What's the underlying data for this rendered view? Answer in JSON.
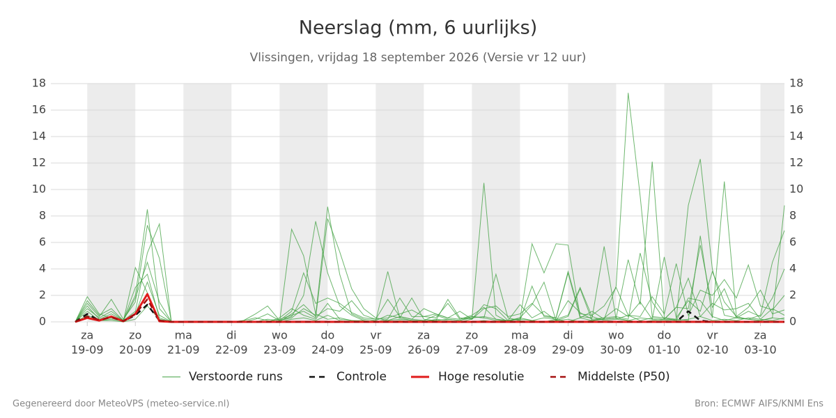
{
  "chart_data": {
    "type": "ensemble-line",
    "title": "Neerslag (mm, 6 uurlijks)",
    "subtitle": "Vlissingen, vrijdag 18 september 2026 (Versie vr 12 uur)",
    "footer_left": "Gegenereerd door MeteoVPS (meteo-service.nl)",
    "footer_right": "Bron: ECMWF AIFS/KNMI Ens",
    "categories": [
      null,
      "19-09",
      null,
      null,
      null,
      "20-09",
      null,
      null,
      null,
      "21-09",
      null,
      null,
      null,
      "22-09",
      null,
      null,
      null,
      "23-09",
      null,
      null,
      null,
      "24-09",
      null,
      null,
      null,
      "25-09",
      null,
      null,
      null,
      "26-09",
      null,
      null,
      null,
      "27-09",
      null,
      null,
      null,
      "28-09",
      null,
      null,
      null,
      "29-09",
      null,
      null,
      null,
      "30-09",
      null,
      null,
      null,
      "01-10",
      null,
      null,
      null,
      "02-10",
      null,
      null,
      null,
      "03-10",
      null,
      null
    ],
    "weekdays": [
      null,
      "za",
      null,
      null,
      null,
      "zo",
      null,
      null,
      null,
      "ma",
      null,
      null,
      null,
      "di",
      null,
      null,
      null,
      "wo",
      null,
      null,
      null,
      "do",
      null,
      null,
      null,
      "vr",
      null,
      null,
      null,
      "za",
      null,
      null,
      null,
      "zo",
      null,
      null,
      null,
      "ma",
      null,
      null,
      null,
      "di",
      null,
      null,
      null,
      "wo",
      null,
      null,
      null,
      "do",
      null,
      null,
      null,
      "vr",
      null,
      null,
      null,
      "za",
      null,
      null
    ],
    "ylim": [
      0,
      18
    ],
    "yticks": [
      0,
      2,
      4,
      6,
      8,
      10,
      12,
      14,
      16,
      18
    ],
    "grid": true,
    "ensemble": {
      "name": "Verstoorde runs",
      "color": "#3d9f3d",
      "members": [
        [
          0,
          1.9,
          0.6,
          0.3,
          0.1,
          2.0,
          8.5,
          1.0,
          0,
          0,
          0,
          0,
          0,
          0,
          0.1,
          0.3,
          0.1,
          0,
          7.0,
          5.0,
          0.6,
          0.2,
          0.3,
          0.1,
          0,
          0.1,
          3.8,
          0.3,
          0.1,
          0,
          0.2,
          0.1,
          0,
          0.2,
          10.5,
          0.5,
          0,
          0.3,
          0.1,
          0,
          0.2,
          0,
          0.3,
          0.1,
          0.2,
          2.7,
          17.3,
          9.5,
          0.4,
          0.3,
          0.1,
          1.8,
          1.6,
          0.4,
          0.1,
          0.3,
          0.2,
          0.1,
          0.3,
          0.2
        ],
        [
          0,
          1.4,
          0.4,
          1.7,
          0.2,
          1.5,
          7.3,
          4.8,
          0,
          0,
          0,
          0,
          0,
          0,
          0,
          0.2,
          0.6,
          0.1,
          0.4,
          2.0,
          7.6,
          3.7,
          1.2,
          0.5,
          0.1,
          0,
          0.2,
          1.8,
          0.4,
          0.4,
          0.3,
          1.4,
          0.2,
          0.4,
          0.3,
          3.6,
          0.3,
          0.1,
          2.7,
          0.4,
          0.3,
          3.7,
          0.3,
          0.8,
          0.2,
          0.3,
          4.7,
          1.3,
          12.1,
          0.3,
          0.2,
          8.8,
          12.3,
          4.0,
          0.5,
          0.3,
          0.2,
          0.5,
          4.5,
          6.9
        ],
        [
          0,
          1.0,
          0.3,
          0.8,
          0.1,
          0.8,
          5.2,
          7.4,
          0,
          0,
          0,
          0,
          0,
          0,
          0.1,
          0.6,
          1.2,
          0.1,
          0.3,
          1.0,
          0.5,
          8.7,
          3.6,
          0.6,
          0.2,
          0.1,
          0.5,
          0.3,
          1.8,
          0.2,
          0.1,
          1.7,
          0.3,
          0.2,
          1.3,
          1.0,
          0.1,
          0.3,
          1.3,
          3.0,
          0.1,
          0.4,
          2.5,
          0.1,
          0.3,
          1.0,
          0.4,
          1.5,
          0.2,
          4.9,
          0.3,
          1.6,
          0.8,
          3.8,
          1.5,
          0.4,
          1.1,
          2.4,
          0.6,
          0.9
        ],
        [
          0,
          0.5,
          0.1,
          0.3,
          0.05,
          0.6,
          3.0,
          0.5,
          0,
          0,
          0,
          0,
          0,
          0,
          0,
          0,
          0,
          0.2,
          0.5,
          0.8,
          0.3,
          7.8,
          5.3,
          2.5,
          1.0,
          0.3,
          0.1,
          0.4,
          0.2,
          0.1,
          0.5,
          0.2,
          0.1,
          0.3,
          0.4,
          0.2,
          0.1,
          0.2,
          5.9,
          3.7,
          5.9,
          5.8,
          0.4,
          0.3,
          5.7,
          0.2,
          0.1,
          0.3,
          0.2,
          0.1,
          0.2,
          0.1,
          6.5,
          0.3,
          10.6,
          0.4,
          0.2,
          0.1,
          0.3,
          8.8
        ],
        [
          0,
          1.6,
          0.5,
          1.0,
          0.1,
          1.8,
          4.5,
          1.5,
          0,
          0,
          0,
          0,
          0,
          0,
          0,
          0,
          0,
          0,
          0.6,
          1.3,
          0.4,
          1.0,
          0.8,
          1.6,
          0.5,
          0.2,
          1.7,
          0.4,
          0.2,
          1.0,
          0.6,
          0.3,
          0.8,
          0.2,
          1.0,
          1.2,
          0.4,
          0.6,
          1.4,
          0.5,
          0.3,
          3.8,
          0.6,
          0.5,
          1.2,
          2.6,
          0.5,
          0.4,
          1.9,
          0.6,
          4.4,
          0.5,
          2.4,
          2.0,
          3.2,
          1.8,
          4.3,
          1.2,
          0.9,
          2.0
        ],
        [
          0,
          1.2,
          0.2,
          0.6,
          0.1,
          2.6,
          3.6,
          0.3,
          0,
          0,
          0,
          0,
          0,
          0,
          0,
          0,
          0.2,
          0.1,
          0.8,
          3.7,
          1.4,
          1.8,
          1.4,
          0.7,
          0.3,
          0.2,
          0.3,
          0.6,
          0.9,
          0.4,
          0.6,
          0.3,
          0.2,
          0.5,
          1.1,
          0.2,
          0.1,
          1.3,
          0.3,
          0.8,
          0.1,
          1.6,
          0.7,
          0.2,
          0.3,
          0.4,
          0.2,
          5.2,
          1.5,
          0.2,
          1.1,
          1.0,
          5.8,
          1.1,
          2.5,
          0.3,
          0.8,
          0.4,
          1.8,
          4.0
        ],
        [
          0,
          0.8,
          0.1,
          0.2,
          0.05,
          4.1,
          2.2,
          0.1,
          0,
          0,
          0,
          0,
          0,
          0,
          0,
          0,
          0,
          0.3,
          1.0,
          0.5,
          0.2,
          1.4,
          0.2,
          0.1,
          0.1,
          0,
          0.1,
          0.2,
          0.1,
          0.1,
          0.1,
          0.2,
          0.1,
          0.4,
          0.3,
          0.1,
          0.1,
          0.2,
          0.1,
          0.3,
          0.2,
          0.5,
          2.6,
          0.4,
          0.1,
          0.2,
          0.5,
          0.1,
          0.3,
          0.2,
          1.1,
          3.3,
          0.4,
          1.4,
          0.9,
          1.0,
          1.4,
          0.2,
          1.0,
          0.5
        ],
        [
          0,
          0.3,
          0.1,
          0.1,
          0,
          0.2,
          1.2,
          0.2,
          0,
          0,
          0,
          0,
          0,
          0,
          0,
          0,
          0,
          0,
          0.2,
          0.3,
          0.1,
          0.5,
          0.1,
          0,
          0,
          0,
          0,
          0.1,
          0,
          0,
          0.1,
          0,
          0,
          0,
          0.1,
          0,
          0,
          0.1,
          0,
          0,
          0.1,
          0.2,
          0,
          0.1,
          0.2,
          0.3,
          0.1,
          0,
          0.1,
          0.2,
          0.1,
          0.2,
          0.4,
          0.1,
          0.2,
          0.1,
          0.3,
          0.2,
          0.1,
          0.3
        ]
      ]
    },
    "series": [
      {
        "name": "Controle",
        "color": "#111111",
        "dashed": true,
        "values": [
          0,
          0.6,
          0.1,
          0.4,
          0.05,
          0.5,
          1.3,
          0.1,
          0,
          0,
          0,
          0,
          0,
          0,
          0,
          0,
          0,
          0,
          0,
          0,
          0,
          0,
          0,
          0,
          0,
          0,
          0,
          0,
          0,
          0,
          0,
          0,
          0,
          0,
          0,
          0,
          0,
          0,
          0,
          0,
          0,
          0,
          0,
          0,
          0,
          0,
          0,
          0,
          0,
          0,
          0,
          0.8,
          0.1,
          0,
          0,
          0,
          0,
          0,
          0,
          0
        ]
      },
      {
        "name": "Hoge resolutie",
        "color": "#e01b1b",
        "dashed": false,
        "values": [
          0,
          0.3,
          0.1,
          0.4,
          0.05,
          0.6,
          2.1,
          0.05,
          0,
          0,
          0,
          0,
          0,
          0,
          0,
          0,
          0,
          0,
          0,
          0,
          0,
          0,
          0,
          0,
          0,
          0,
          0,
          0,
          0,
          0,
          0,
          0,
          0,
          0,
          0,
          0,
          0,
          0,
          0,
          0,
          0,
          0,
          0,
          0,
          0,
          0,
          0,
          0,
          0,
          0,
          0,
          0,
          0,
          0,
          0,
          0,
          0,
          0,
          0,
          0
        ]
      },
      {
        "name": "Middelste (P50)",
        "color": "#a51010",
        "dashed": true,
        "values": [
          0,
          0.4,
          0.15,
          0.35,
          0.05,
          0.6,
          1.7,
          0.1,
          0,
          0,
          0,
          0,
          0,
          0,
          0,
          0,
          0,
          0,
          0,
          0,
          0,
          0,
          0,
          0,
          0,
          0,
          0,
          0,
          0,
          0,
          0,
          0,
          0,
          0,
          0,
          0,
          0,
          0,
          0,
          0,
          0,
          0,
          0,
          0,
          0,
          0,
          0,
          0,
          0,
          0,
          0,
          0,
          0,
          0,
          0,
          0,
          0,
          0,
          0,
          0
        ]
      }
    ]
  }
}
